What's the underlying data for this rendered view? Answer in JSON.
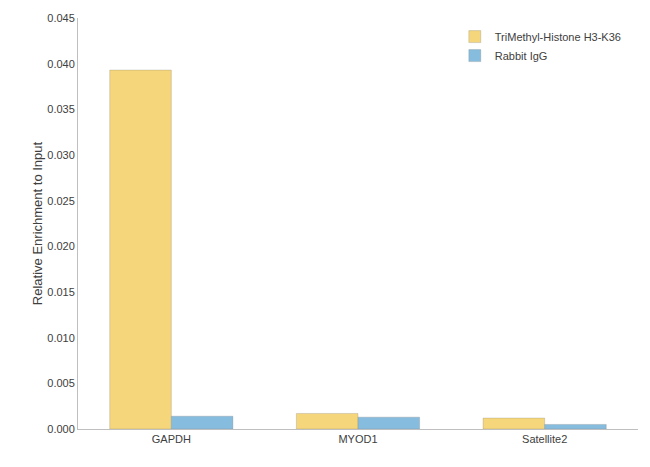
{
  "chart_data": {
    "type": "bar",
    "y_label": "Relative Enrichment to Input",
    "categories": [
      "GAPDH",
      "MYOD1",
      "Satellite2"
    ],
    "series": [
      {
        "name": "TriMethyl-Histone H3-K36",
        "color": "#f5d67a",
        "values": [
          0.0393,
          0.0017,
          0.0012
        ]
      },
      {
        "name": "Rabbit IgG",
        "color": "#86bddf",
        "values": [
          0.0014,
          0.0013,
          0.0005
        ]
      }
    ],
    "ylim": [
      0,
      0.045
    ],
    "yticks": [
      {
        "value": 0,
        "label": "0.000"
      },
      0.005,
      {
        "value": 0.01,
        "label": "0.010"
      },
      0.015,
      {
        "value": 0.02,
        "label": "0.020"
      },
      0.025,
      {
        "value": 0.03,
        "label": "0.030"
      },
      0.035,
      {
        "value": 0.04,
        "label": "0.040"
      },
      0.045
    ],
    "grid": false,
    "legend": "top-right"
  }
}
